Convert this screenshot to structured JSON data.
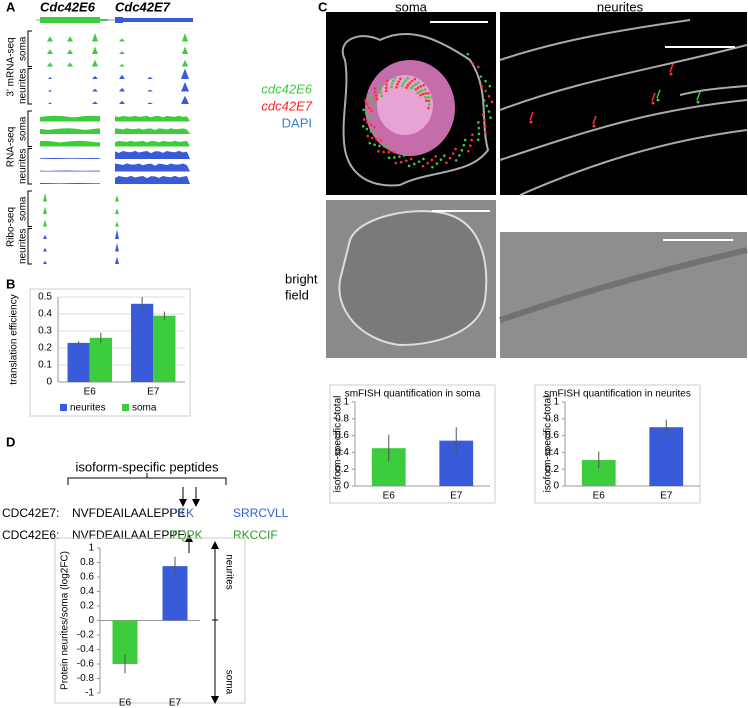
{
  "panel_labels": [
    "A",
    "B",
    "C",
    "D"
  ],
  "panel_a": {
    "genes": [
      "Cdc42E6",
      "Cdc42E7"
    ],
    "assays": [
      {
        "name": "3' mRNA-seq",
        "conditions": [
          "soma",
          "neurites"
        ]
      },
      {
        "name": "RNA-seq",
        "conditions": [
          "soma",
          "neurites"
        ]
      },
      {
        "name": "Ribo-seq",
        "conditions": [
          "soma",
          "neurites"
        ]
      }
    ]
  },
  "panel_c": {
    "columns": [
      "soma",
      "neurites"
    ],
    "legend": [
      "cdc42E6",
      "cdc42E7",
      "DAPI"
    ],
    "bright_field": [
      "bright",
      "field"
    ]
  },
  "panel_d": {
    "bracket_label": "isoform-specific peptides",
    "sequences": [
      {
        "name": "CDC42E7:",
        "common": "NVFDEAILAALEPPE",
        "specific": "PKK",
        "rest": "SRRCVLL"
      },
      {
        "name": "CDC42E6:",
        "common": "NVFDEAILAALEPPE",
        "specific": "TQPK",
        "rest": "RKCCIF"
      }
    ],
    "arrow_labels": [
      "neurites",
      "soma"
    ]
  },
  "chart_data": [
    {
      "type": "bar",
      "ylabel": "translation efficiency",
      "categories": [
        "E6",
        "E7"
      ],
      "series": [
        {
          "name": "neurites",
          "color": "#3a5bd9",
          "values": [
            0.23,
            0.46
          ],
          "errors": [
            0.01,
            0.04
          ]
        },
        {
          "name": "soma",
          "color": "#3ccc3c",
          "values": [
            0.26,
            0.39
          ],
          "errors": [
            0.03,
            0.025
          ]
        }
      ],
      "ylim": [
        0,
        0.5
      ],
      "yticks": [
        0,
        0.1,
        0.2,
        0.3,
        0.4,
        0.5
      ],
      "grid": true,
      "legend": "bottom"
    },
    {
      "type": "bar",
      "title": "smFISH quantification in soma",
      "ylabel": "isoform-specific / total",
      "categories": [
        "E6",
        "E7"
      ],
      "values": [
        0.45,
        0.54
      ],
      "errors": [
        0.16,
        0.16
      ],
      "colors": [
        "#3ccc3c",
        "#3a5bd9"
      ],
      "ylim": [
        0,
        1
      ],
      "yticks": [
        0,
        0.2,
        0.4,
        0.6,
        0.8,
        1
      ],
      "grid": false
    },
    {
      "type": "bar",
      "title": "smFISH quantification in neurites",
      "ylabel": "isoform-specific / total",
      "categories": [
        "E6",
        "E7"
      ],
      "values": [
        0.31,
        0.7
      ],
      "errors": [
        0.1,
        0.09
      ],
      "colors": [
        "#3ccc3c",
        "#3a5bd9"
      ],
      "ylim": [
        0,
        1
      ],
      "yticks": [
        0,
        0.2,
        0.4,
        0.6,
        0.8,
        1
      ],
      "grid": false
    },
    {
      "type": "bar",
      "ylabel": "Protein neurites/soma (log2FC)",
      "categories": [
        "E6",
        "E7"
      ],
      "values": [
        -0.6,
        0.75
      ],
      "errors": [
        0.13,
        0.13
      ],
      "colors": [
        "#3ccc3c",
        "#3a5bd9"
      ],
      "ylim": [
        -1,
        1
      ],
      "yticks": [
        -1,
        -0.8,
        -0.6,
        -0.4,
        -0.2,
        0,
        0.2,
        0.4,
        0.6,
        0.8,
        1
      ],
      "grid": false
    }
  ]
}
